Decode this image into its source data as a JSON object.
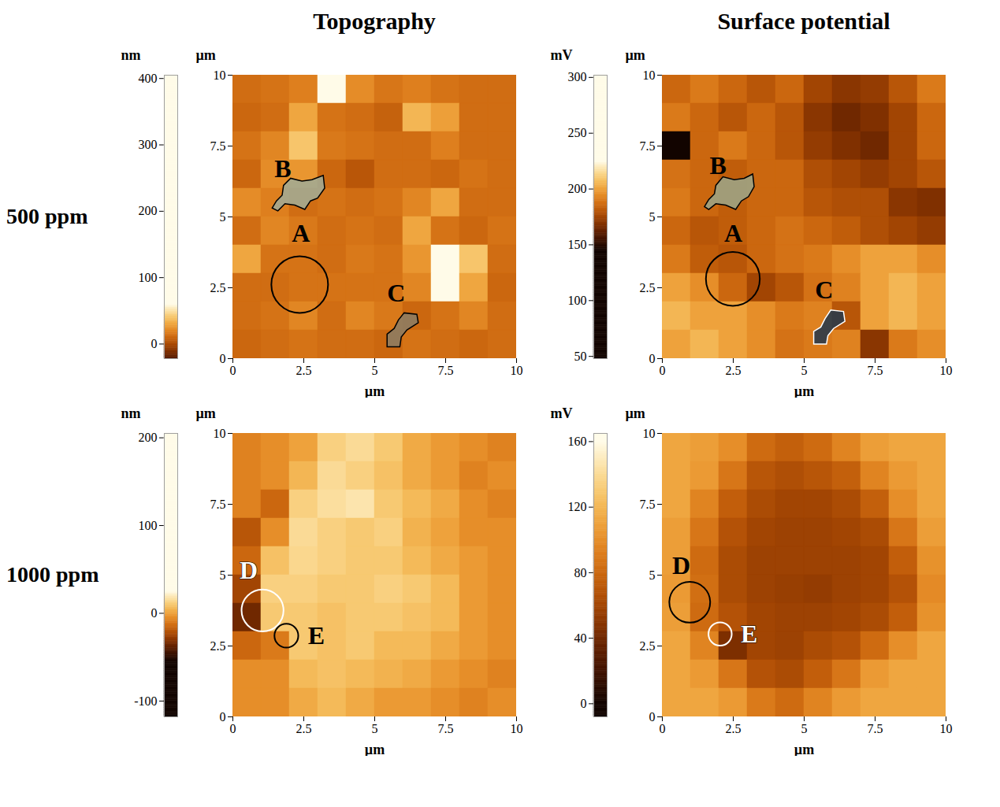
{
  "column_titles": [
    "Topography",
    "Surface potential"
  ],
  "row_labels": [
    "500 ppm",
    "1000 ppm"
  ],
  "chart_data": [
    {
      "type": "heatmap",
      "x_label": "µm",
      "y_label": "µm",
      "xlim": [
        0,
        10
      ],
      "ylim": [
        0,
        10
      ],
      "xticks": [
        0,
        2.5,
        5,
        7.5,
        10
      ],
      "yticks": [
        0,
        2.5,
        5,
        7.5,
        10
      ],
      "x": [
        0.5,
        1.5,
        2.5,
        3.5,
        4.5,
        5.5,
        6.5,
        7.5,
        8.5,
        9.5
      ],
      "y": [
        9.5,
        8.5,
        7.5,
        6.5,
        5.5,
        4.5,
        3.5,
        2.5,
        1.5,
        0.5
      ],
      "values": [
        [
          12,
          14,
          18,
          60,
          22,
          15,
          18,
          14,
          12,
          12
        ],
        [
          10,
          12,
          30,
          14,
          12,
          8,
          35,
          28,
          12,
          12
        ],
        [
          14,
          20,
          40,
          16,
          14,
          12,
          12,
          18,
          12,
          12
        ],
        [
          10,
          22,
          25,
          10,
          4,
          12,
          12,
          10,
          14,
          12
        ],
        [
          22,
          18,
          12,
          14,
          12,
          14,
          20,
          30,
          12,
          12
        ],
        [
          12,
          20,
          16,
          12,
          14,
          12,
          30,
          14,
          10,
          14
        ],
        [
          30,
          14,
          14,
          12,
          16,
          14,
          25,
          80,
          40,
          12
        ],
        [
          12,
          12,
          14,
          14,
          14,
          14,
          20,
          70,
          30,
          10
        ],
        [
          12,
          14,
          20,
          12,
          20,
          16,
          10,
          14,
          20,
          12
        ],
        [
          10,
          12,
          14,
          12,
          12,
          10,
          14,
          12,
          10,
          12
        ]
      ],
      "colorbar": {
        "label": "nm",
        "range": [
          -22,
          405
        ],
        "ticks": [
          0,
          100,
          200,
          300,
          400
        ],
        "color_limits": [
          -40,
          60
        ]
      },
      "annotations": [
        {
          "label": "B",
          "label_x": 1.76,
          "label_y": 6.7,
          "color": "#000000",
          "region": {
            "color": "#a3aa92",
            "points": [
              [
                1.4,
                5.3
              ],
              [
                1.55,
                5.55
              ],
              [
                1.75,
                5.75
              ],
              [
                1.8,
                6.1
              ],
              [
                2.05,
                6.35
              ],
              [
                2.45,
                6.25
              ],
              [
                2.8,
                6.3
              ],
              [
                3.2,
                6.45
              ],
              [
                3.25,
                6.0
              ],
              [
                3.0,
                5.65
              ],
              [
                2.75,
                5.55
              ],
              [
                2.55,
                5.25
              ],
              [
                2.2,
                5.4
              ],
              [
                1.85,
                5.45
              ],
              [
                1.6,
                5.2
              ]
            ]
          }
        },
        {
          "label": "A",
          "label_x": 2.4,
          "label_y": 4.4,
          "color": "#000000",
          "circle": {
            "x": 2.37,
            "y": 2.6,
            "r": 1.0
          }
        },
        {
          "label": "C",
          "label_x": 5.76,
          "label_y": 2.3,
          "color": "#000000",
          "region": {
            "color": "#8e7c62",
            "points": [
              [
                5.45,
                0.4
              ],
              [
                5.45,
                0.85
              ],
              [
                5.7,
                1.05
              ],
              [
                5.85,
                1.35
              ],
              [
                6.05,
                1.6
              ],
              [
                6.5,
                1.55
              ],
              [
                6.55,
                1.25
              ],
              [
                6.15,
                1.0
              ],
              [
                5.95,
                0.75
              ],
              [
                5.9,
                0.4
              ]
            ]
          }
        }
      ]
    },
    {
      "type": "heatmap",
      "x_label": "µm",
      "y_label": "µm",
      "xlim": [
        0,
        10
      ],
      "ylim": [
        0,
        10
      ],
      "xticks": [
        0,
        2.5,
        5,
        7.5,
        10
      ],
      "yticks": [
        0,
        2.5,
        5,
        7.5,
        10
      ],
      "x": [
        0.5,
        1.5,
        2.5,
        3.5,
        4.5,
        5.5,
        6.5,
        7.5,
        8.5,
        9.5
      ],
      "y": [
        9.5,
        8.5,
        7.5,
        6.5,
        5.5,
        4.5,
        3.5,
        2.5,
        1.5,
        0.5
      ],
      "values": [
        [
          185,
          190,
          185,
          180,
          185,
          175,
          170,
          172,
          180,
          190
        ],
        [
          190,
          185,
          180,
          185,
          180,
          170,
          165,
          168,
          175,
          185
        ],
        [
          140,
          185,
          190,
          185,
          180,
          172,
          168,
          165,
          175,
          185
        ],
        [
          188,
          185,
          182,
          185,
          185,
          178,
          175,
          172,
          175,
          180
        ],
        [
          190,
          185,
          182,
          185,
          185,
          180,
          178,
          178,
          170,
          168
        ],
        [
          185,
          180,
          182,
          185,
          188,
          185,
          182,
          178,
          175,
          172
        ],
        [
          190,
          182,
          180,
          185,
          188,
          190,
          195,
          200,
          200,
          195
        ],
        [
          200,
          195,
          185,
          175,
          180,
          188,
          192,
          200,
          205,
          200
        ],
        [
          205,
          200,
          200,
          195,
          190,
          192,
          180,
          200,
          205,
          200
        ],
        [
          200,
          205,
          200,
          195,
          188,
          190,
          192,
          170,
          190,
          195
        ]
      ],
      "colorbar": {
        "label": "mV",
        "range": [
          48,
          302
        ],
        "ticks": [
          50,
          100,
          150,
          200,
          250,
          300
        ],
        "color_limits": [
          145,
          225
        ]
      },
      "annotations": [
        {
          "label": "B",
          "label_x": 1.96,
          "label_y": 6.8,
          "color": "#000000",
          "region": {
            "color": "#9da384",
            "points": [
              [
                1.5,
                5.35
              ],
              [
                1.65,
                5.6
              ],
              [
                1.85,
                5.8
              ],
              [
                1.9,
                6.1
              ],
              [
                2.15,
                6.4
              ],
              [
                2.55,
                6.3
              ],
              [
                2.9,
                6.35
              ],
              [
                3.2,
                6.5
              ],
              [
                3.25,
                6.05
              ],
              [
                3.05,
                5.7
              ],
              [
                2.8,
                5.55
              ],
              [
                2.6,
                5.25
              ],
              [
                2.25,
                5.4
              ],
              [
                1.9,
                5.45
              ],
              [
                1.65,
                5.25
              ]
            ]
          }
        },
        {
          "label": "A",
          "label_x": 2.5,
          "label_y": 4.4,
          "color": "#000000",
          "circle": {
            "x": 2.5,
            "y": 2.8,
            "r": 0.95
          }
        },
        {
          "label": "C",
          "label_x": 5.7,
          "label_y": 2.4,
          "color": "#000000",
          "region": {
            "color": "#2a3a4a",
            "points": [
              [
                5.35,
                0.5
              ],
              [
                5.35,
                0.95
              ],
              [
                5.6,
                1.1
              ],
              [
                5.75,
                1.4
              ],
              [
                5.95,
                1.7
              ],
              [
                6.4,
                1.65
              ],
              [
                6.45,
                1.3
              ],
              [
                6.05,
                1.05
              ],
              [
                5.85,
                0.8
              ],
              [
                5.8,
                0.5
              ]
            ]
          }
        }
      ]
    },
    {
      "type": "heatmap",
      "x_label": "µm",
      "y_label": "µm",
      "xlim": [
        0,
        10
      ],
      "ylim": [
        0,
        10
      ],
      "xticks": [
        0,
        2.5,
        5,
        7.5,
        10
      ],
      "yticks": [
        0,
        2.5,
        5,
        7.5,
        10
      ],
      "x": [
        0.5,
        1.5,
        2.5,
        3.5,
        4.5,
        5.5,
        6.5,
        7.5,
        8.5,
        9.5
      ],
      "y": [
        9.5,
        8.5,
        7.5,
        6.5,
        5.5,
        4.5,
        3.5,
        2.5,
        1.5,
        0.5
      ],
      "values": [
        [
          -8,
          -5,
          0,
          12,
          15,
          10,
          2,
          -2,
          -5,
          -8
        ],
        [
          -8,
          -5,
          5,
          15,
          12,
          8,
          2,
          -2,
          -8,
          -5
        ],
        [
          -8,
          -15,
          12,
          16,
          18,
          10,
          6,
          2,
          -5,
          -8
        ],
        [
          -20,
          -5,
          15,
          12,
          10,
          12,
          4,
          0,
          -5,
          -5
        ],
        [
          -15,
          8,
          14,
          12,
          10,
          10,
          6,
          2,
          -2,
          -5
        ],
        [
          -25,
          12,
          12,
          10,
          10,
          12,
          10,
          6,
          -2,
          -5
        ],
        [
          -35,
          10,
          10,
          8,
          10,
          10,
          8,
          6,
          -2,
          -5
        ],
        [
          -15,
          -10,
          10,
          8,
          10,
          6,
          6,
          2,
          -2,
          -5
        ],
        [
          -5,
          -5,
          6,
          8,
          6,
          4,
          2,
          -2,
          -5,
          -8
        ],
        [
          -5,
          -5,
          2,
          6,
          2,
          -2,
          -2,
          -5,
          -8,
          -5
        ]
      ],
      "colorbar": {
        "label": "nm",
        "range": [
          -118,
          205
        ],
        "ticks": [
          -100,
          0,
          100,
          200
        ],
        "color_limits": [
          -55,
          25
        ]
      },
      "annotations": [
        {
          "label": "D",
          "label_x": 0.56,
          "label_y": 5.15,
          "color": "#ffffff",
          "circle": {
            "x": 1.06,
            "y": 3.74,
            "r": 0.74
          }
        },
        {
          "label": "E",
          "label_x": 2.94,
          "label_y": 2.85,
          "color": "#000000",
          "circle": {
            "x": 1.9,
            "y": 2.85,
            "r": 0.42
          }
        }
      ]
    },
    {
      "type": "heatmap",
      "x_label": "µm",
      "y_label": "µm",
      "xlim": [
        0,
        10
      ],
      "ylim": [
        0,
        10
      ],
      "xticks": [
        0,
        2.5,
        5,
        7.5,
        10
      ],
      "yticks": [
        0,
        2.5,
        5,
        7.5,
        10
      ],
      "x": [
        0.5,
        1.5,
        2.5,
        3.5,
        4.5,
        5.5,
        6.5,
        7.5,
        8.5,
        9.5
      ],
      "y": [
        9.5,
        8.5,
        7.5,
        6.5,
        5.5,
        4.5,
        3.5,
        2.5,
        1.5,
        0.5
      ],
      "values": [
        [
          112,
          108,
          100,
          82,
          76,
          82,
          95,
          108,
          112,
          112
        ],
        [
          112,
          106,
          88,
          70,
          66,
          70,
          76,
          95,
          106,
          112
        ],
        [
          112,
          95,
          75,
          64,
          60,
          60,
          64,
          76,
          100,
          112
        ],
        [
          108,
          88,
          68,
          60,
          58,
          58,
          60,
          64,
          88,
          108
        ],
        [
          108,
          82,
          64,
          58,
          58,
          58,
          58,
          60,
          75,
          102
        ],
        [
          106,
          84,
          64,
          58,
          56,
          54,
          58,
          60,
          68,
          98
        ],
        [
          108,
          82,
          68,
          60,
          58,
          58,
          60,
          64,
          75,
          102
        ],
        [
          112,
          95,
          45,
          60,
          58,
          64,
          68,
          82,
          100,
          112
        ],
        [
          112,
          106,
          88,
          68,
          64,
          75,
          88,
          106,
          112,
          112
        ],
        [
          112,
          112,
          106,
          90,
          82,
          95,
          106,
          112,
          112,
          112
        ]
      ],
      "colorbar": {
        "label": "mV",
        "range": [
          -8,
          165
        ],
        "ticks": [
          0,
          40,
          80,
          120,
          160
        ],
        "color_limits": [
          0,
          160
        ]
      },
      "annotations": [
        {
          "label": "D",
          "label_x": 0.67,
          "label_y": 5.34,
          "color": "#000000",
          "circle": {
            "x": 0.98,
            "y": 4.03,
            "r": 0.72
          }
        },
        {
          "label": "E",
          "label_x": 3.06,
          "label_y": 2.91,
          "color": "#ffffff",
          "circle": {
            "x": 2.05,
            "y": 2.91,
            "r": 0.41
          }
        }
      ]
    }
  ]
}
